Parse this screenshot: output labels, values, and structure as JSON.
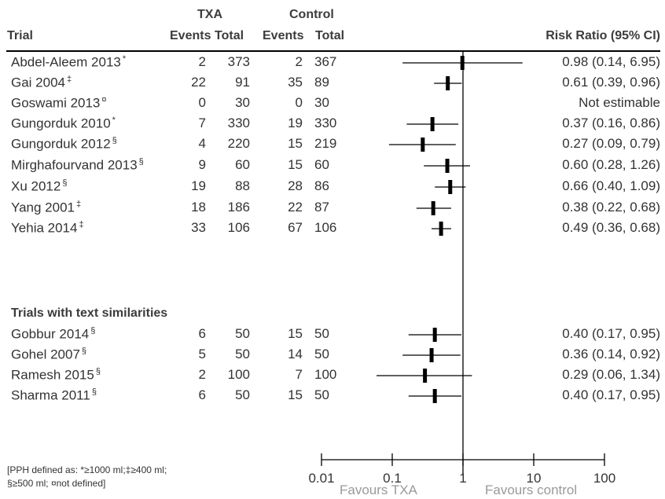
{
  "headers": {
    "trial": "Trial",
    "txa": "TXA",
    "control": "Control",
    "events": "Events",
    "total": "Total",
    "rr": "Risk Ratio (95% CI)"
  },
  "section_label": "Trials with text similarities",
  "footnote": {
    "line1": "[PPH defined as: *≥1000 ml;‡≥400 ml;",
    "line2": "§≥500 ml; ¤not defined]"
  },
  "chart_data": {
    "type": "forest",
    "x_scale": "log",
    "xlim": [
      0.01,
      100
    ],
    "ticks": [
      0.01,
      0.1,
      1,
      10,
      100
    ],
    "tick_labels": [
      "0.01",
      "0.1",
      "1",
      "10",
      "100"
    ],
    "reference_line": 1,
    "xlabel_left": "Favours TXA",
    "xlabel_right": "Favours control",
    "colors": {
      "line": "#000000",
      "marker": "#000000",
      "text": "#333333"
    },
    "trials": [
      {
        "name": "Abdel-Aleem 2013",
        "mark": "*",
        "txa_events": "2",
        "txa_total": "373",
        "ctl_events": "2",
        "ctl_total": "367",
        "rr": 0.98,
        "lo": 0.14,
        "hi": 6.95,
        "rr_text": "0.98 (0.14, 6.95)",
        "group": 0
      },
      {
        "name": "Gai 2004",
        "mark": "‡",
        "txa_events": "22",
        "txa_total": "91",
        "ctl_events": "35",
        "ctl_total": "89",
        "rr": 0.61,
        "lo": 0.39,
        "hi": 0.96,
        "rr_text": "0.61 (0.39, 0.96)",
        "group": 0
      },
      {
        "name": "Goswami 2013",
        "mark": "¤",
        "txa_events": "0",
        "txa_total": "30",
        "ctl_events": "0",
        "ctl_total": "30",
        "rr": null,
        "lo": null,
        "hi": null,
        "rr_text": "Not estimable",
        "group": 0
      },
      {
        "name": "Gungorduk 2010",
        "mark": "*",
        "txa_events": "7",
        "txa_total": "330",
        "ctl_events": "19",
        "ctl_total": "330",
        "rr": 0.37,
        "lo": 0.16,
        "hi": 0.86,
        "rr_text": "0.37 (0.16, 0.86)",
        "group": 0
      },
      {
        "name": "Gungorduk 2012",
        "mark": "§",
        "txa_events": "4",
        "txa_total": "220",
        "ctl_events": "15",
        "ctl_total": "219",
        "rr": 0.27,
        "lo": 0.09,
        "hi": 0.79,
        "rr_text": "0.27 (0.09, 0.79)",
        "group": 0
      },
      {
        "name": "Mirghafourvand 2013",
        "mark": "§",
        "txa_events": "9",
        "txa_total": "60",
        "ctl_events": "15",
        "ctl_total": "60",
        "rr": 0.6,
        "lo": 0.28,
        "hi": 1.26,
        "rr_text": "0.60 (0.28, 1.26)",
        "group": 0
      },
      {
        "name": "Xu 2012",
        "mark": "§",
        "txa_events": "19",
        "txa_total": "88",
        "ctl_events": "28",
        "ctl_total": "86",
        "rr": 0.66,
        "lo": 0.4,
        "hi": 1.09,
        "rr_text": "0.66 (0.40, 1.09)",
        "group": 0
      },
      {
        "name": "Yang 2001",
        "mark": "‡",
        "txa_events": "18",
        "txa_total": "186",
        "ctl_events": "22",
        "ctl_total": "87",
        "rr": 0.38,
        "lo": 0.22,
        "hi": 0.68,
        "rr_text": "0.38 (0.22, 0.68)",
        "group": 0
      },
      {
        "name": "Yehia 2014",
        "mark": "‡",
        "txa_events": "33",
        "txa_total": "106",
        "ctl_events": "67",
        "ctl_total": "106",
        "rr": 0.49,
        "lo": 0.36,
        "hi": 0.68,
        "rr_text": "0.49 (0.36, 0.68)",
        "group": 0
      },
      {
        "name": "Gobbur 2014",
        "mark": "§",
        "txa_events": "6",
        "txa_total": "50",
        "ctl_events": "15",
        "ctl_total": "50",
        "rr": 0.4,
        "lo": 0.17,
        "hi": 0.95,
        "rr_text": "0.40 (0.17, 0.95)",
        "group": 1
      },
      {
        "name": "Gohel 2007",
        "mark": "§",
        "txa_events": "5",
        "txa_total": "50",
        "ctl_events": "14",
        "ctl_total": "50",
        "rr": 0.36,
        "lo": 0.14,
        "hi": 0.92,
        "rr_text": "0.36 (0.14, 0.92)",
        "group": 1
      },
      {
        "name": "Ramesh 2015",
        "mark": "§",
        "txa_events": "2",
        "txa_total": "100",
        "ctl_events": "7",
        "ctl_total": "100",
        "rr": 0.29,
        "lo": 0.06,
        "hi": 1.34,
        "rr_text": "0.29 (0.06, 1.34)",
        "group": 1
      },
      {
        "name": "Sharma 2011",
        "mark": "§",
        "txa_events": "6",
        "txa_total": "50",
        "ctl_events": "15",
        "ctl_total": "50",
        "rr": 0.4,
        "lo": 0.17,
        "hi": 0.95,
        "rr_text": "0.40 (0.17, 0.95)",
        "group": 1
      }
    ]
  }
}
